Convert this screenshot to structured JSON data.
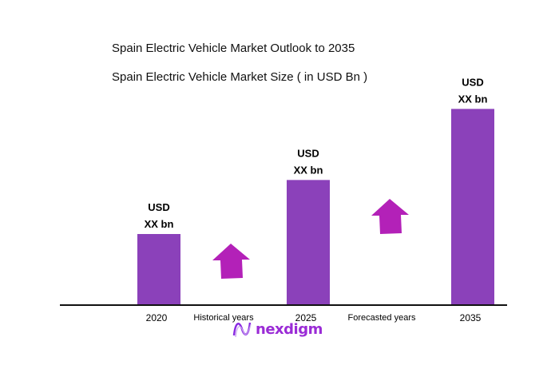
{
  "titles": {
    "main": "Spain Electric Vehicle Market Outlook to 2035",
    "sub": "Spain Electric Vehicle Market Size ( in USD Bn )"
  },
  "chart_data": {
    "type": "bar",
    "title": "Spain Electric Vehicle Market Outlook to 2035",
    "subtitle": "Spain Electric Vehicle Market Size ( in USD Bn )",
    "categories": [
      "2020",
      "2025",
      "2035"
    ],
    "values_relative": [
      1.0,
      1.76,
      2.76
    ],
    "data_labels": [
      [
        "USD",
        "XX bn"
      ],
      [
        "USD",
        "XX bn"
      ],
      [
        "USD",
        "XX bn"
      ]
    ],
    "annotations": [
      "Historical years",
      "Forecasted years"
    ],
    "xlabel": "",
    "ylabel": "",
    "grid": false,
    "colors": {
      "bar": "#8B41BA",
      "arrow": "#B321B8",
      "axis": "#111111"
    }
  },
  "logo": {
    "text": "nexdigm"
  }
}
